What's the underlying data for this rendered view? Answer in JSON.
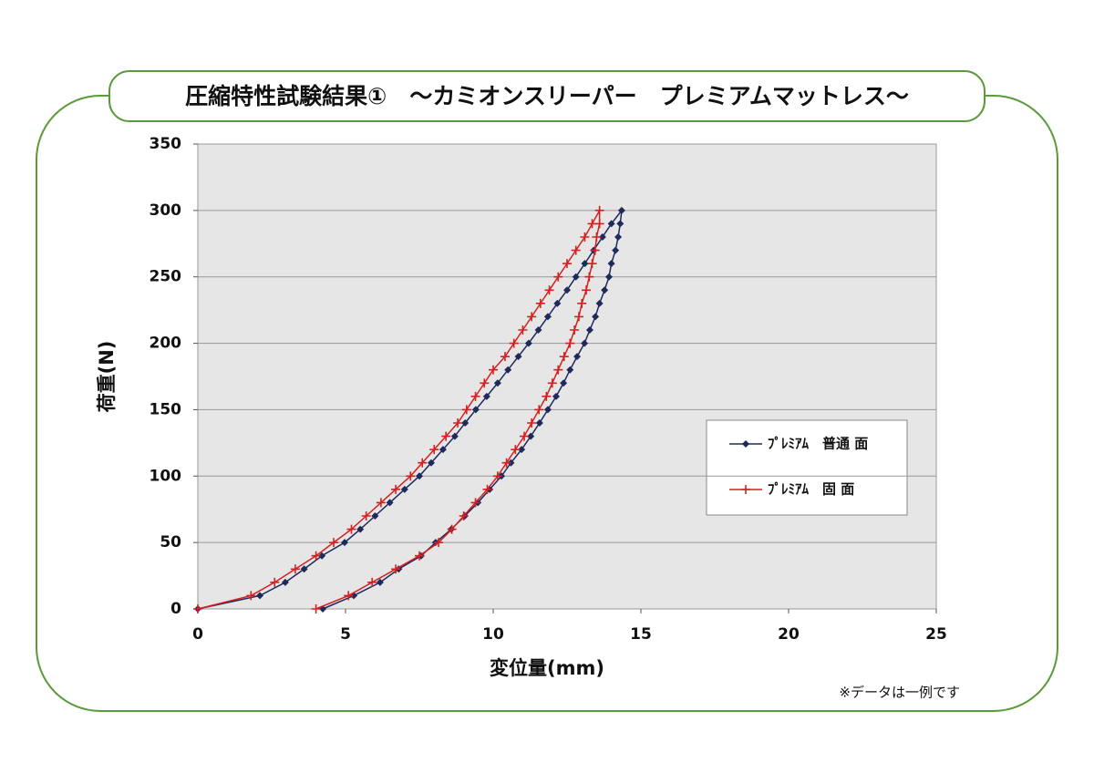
{
  "chart_data": {
    "type": "line",
    "title": "圧縮特性試験結果①　～カミオンスリーパー　プレミアムマットレス～",
    "xlabel": "変位量(mm)",
    "ylabel": "荷重(N)",
    "note": "※データは一例です",
    "xlim": [
      0,
      25
    ],
    "xticks": [
      0,
      5,
      10,
      15,
      20,
      25
    ],
    "ylim": [
      0,
      350
    ],
    "yticks": [
      0,
      50,
      100,
      150,
      200,
      250,
      300,
      350
    ],
    "grid": true,
    "series": [
      {
        "name": "ﾌﾟﾚﾐｱﾑ　普通 面",
        "color": "#1f2a5c",
        "marker": "diamond",
        "x": [
          0,
          2.1,
          2.96,
          3.6,
          4.2,
          4.97,
          5.5,
          6.0,
          6.5,
          7.0,
          7.5,
          7.9,
          8.3,
          8.7,
          9.05,
          9.41,
          9.78,
          10.15,
          10.5,
          10.85,
          11.2,
          11.53,
          11.85,
          12.17,
          12.5,
          12.8,
          13.1,
          13.4,
          13.7,
          14.0,
          14.35,
          14.3,
          14.23,
          14.14,
          14.0,
          13.92,
          13.77,
          13.6,
          13.46,
          13.27,
          13.09,
          12.84,
          12.6,
          12.38,
          12.13,
          11.85,
          11.57,
          11.27,
          10.96,
          10.6,
          10.28,
          9.88,
          9.48,
          9.04,
          8.58,
          8.05,
          7.56,
          6.8,
          6.17,
          5.28,
          4.23
        ],
        "values": [
          0,
          10,
          20,
          30,
          40,
          50,
          60,
          70,
          80,
          90,
          100,
          110,
          120,
          130,
          140,
          150,
          160,
          170,
          180,
          190,
          200,
          210,
          220,
          230,
          240,
          250,
          260,
          270,
          280,
          290,
          300,
          290,
          280,
          270,
          260,
          250,
          240,
          230,
          220,
          210,
          200,
          190,
          180,
          170,
          160,
          150,
          140,
          130,
          120,
          110,
          100,
          90,
          80,
          70,
          60,
          50,
          40,
          30,
          20,
          10,
          0
        ]
      },
      {
        "name": "ﾌﾟﾚﾐｱﾑ　固 面",
        "color": "#d42020",
        "marker": "plus",
        "x": [
          0,
          1.8,
          2.6,
          3.3,
          4.0,
          4.6,
          5.2,
          5.7,
          6.2,
          6.7,
          7.2,
          7.6,
          8.0,
          8.4,
          8.8,
          9.1,
          9.4,
          9.7,
          10.0,
          10.4,
          10.7,
          11.0,
          11.3,
          11.6,
          11.9,
          12.2,
          12.5,
          12.8,
          13.1,
          13.35,
          13.6,
          13.6,
          13.5,
          13.45,
          13.35,
          13.25,
          13.15,
          13.0,
          12.9,
          12.75,
          12.6,
          12.4,
          12.2,
          12.0,
          11.8,
          11.55,
          11.3,
          11.05,
          10.75,
          10.45,
          10.15,
          9.8,
          9.4,
          9.0,
          8.6,
          8.15,
          7.5,
          6.7,
          5.9,
          5.1,
          4.0
        ],
        "values": [
          0,
          10,
          20,
          30,
          40,
          50,
          60,
          70,
          80,
          90,
          100,
          110,
          120,
          130,
          140,
          150,
          160,
          170,
          180,
          190,
          200,
          210,
          220,
          230,
          240,
          250,
          260,
          270,
          280,
          290,
          300,
          290,
          280,
          270,
          260,
          250,
          240,
          230,
          220,
          210,
          200,
          190,
          180,
          170,
          160,
          150,
          140,
          130,
          120,
          110,
          100,
          90,
          80,
          70,
          60,
          50,
          40,
          30,
          20,
          10,
          0
        ]
      }
    ]
  }
}
